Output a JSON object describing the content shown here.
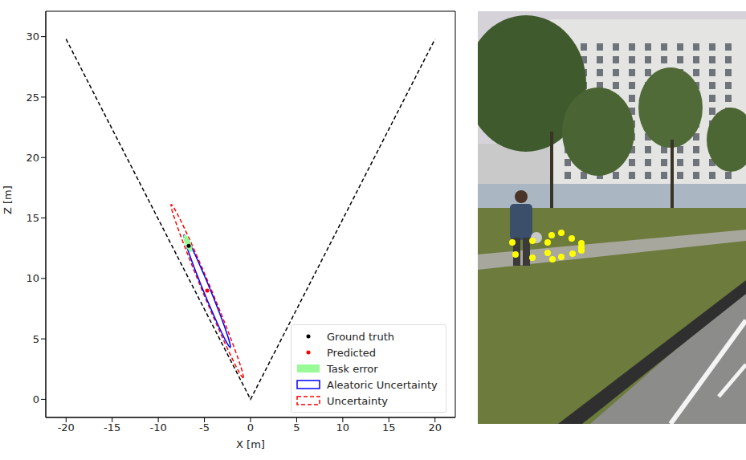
{
  "chart_data": {
    "type": "scatter",
    "xlabel": "X [m]",
    "ylabel": "Z [m]",
    "xlim": [
      -22.2,
      22.2
    ],
    "ylim": [
      -1.5,
      32.1
    ],
    "xticks": [
      -20,
      -15,
      -10,
      -5,
      0,
      5,
      10,
      15,
      20
    ],
    "yticks": [
      0,
      5,
      10,
      15,
      20,
      25,
      30
    ],
    "legend": "lower right",
    "field_of_view": {
      "x": [
        -20,
        0,
        20
      ],
      "y": [
        29.8,
        0,
        29.8
      ],
      "color": "#000000",
      "line_style": "dashed"
    },
    "series": [
      {
        "name": "Ground truth",
        "type": "scatter",
        "color": "#000000",
        "marker": "dot",
        "x": [
          -6.7
        ],
        "y": [
          12.7
        ]
      },
      {
        "name": "Predicted",
        "type": "scatter",
        "color": "#ff0000",
        "marker": "dot",
        "x": [
          -4.7
        ],
        "y": [
          9.0
        ]
      },
      {
        "name": "Task error",
        "type": "ellipse",
        "color": "#98fb98",
        "marker": "patch",
        "center": [
          -6.8,
          12.9
        ],
        "half_axes": [
          0.8,
          0.3
        ],
        "angle": -61
      },
      {
        "name": "Aleatoric Uncertainty",
        "type": "ellipse",
        "color": "#0000ff",
        "line_style": "solid",
        "center": [
          -4.7,
          8.95
        ],
        "half_axes": [
          5.28,
          0.35
        ],
        "angle": -61.7
      },
      {
        "name": "Uncertainty",
        "type": "ellipse",
        "color": "#ff0000",
        "line_style": "dashed",
        "center": [
          -4.7,
          8.95
        ],
        "half_axes": [
          8.15,
          0.45
        ],
        "angle": -61.4
      }
    ]
  },
  "image": {
    "keypoints": [
      [
        43,
        288
      ],
      [
        47,
        303
      ],
      [
        68,
        286
      ],
      [
        68,
        307
      ],
      [
        87,
        288
      ],
      [
        87,
        301
      ],
      [
        92,
        279
      ],
      [
        93,
        309
      ],
      [
        104,
        276
      ],
      [
        104,
        306
      ],
      [
        117,
        283
      ],
      [
        118,
        302
      ],
      [
        129,
        289
      ],
      [
        129,
        294
      ],
      [
        129,
        298
      ]
    ]
  }
}
